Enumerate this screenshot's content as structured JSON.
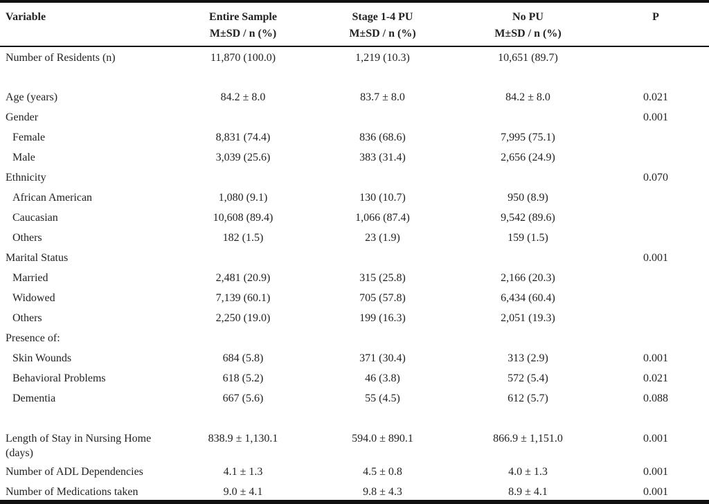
{
  "colors": {
    "background": "#ffffff",
    "text": "#222222",
    "rule": "#101010"
  },
  "table": {
    "columns": [
      {
        "label": "Variable",
        "sublabel": ""
      },
      {
        "label": "Entire Sample",
        "sublabel": "M±SD / n (%)"
      },
      {
        "label": "Stage 1-4 PU",
        "sublabel": "M±SD / n (%)"
      },
      {
        "label": "No PU",
        "sublabel": "M±SD / n (%)"
      },
      {
        "label": "P",
        "sublabel": ""
      }
    ],
    "rows": [
      {
        "indent": false,
        "spacer_after": true,
        "cells": [
          "Number of Residents (n)",
          "11,870 (100.0)",
          "1,219 (10.3)",
          "10,651 (89.7)",
          ""
        ]
      },
      {
        "indent": false,
        "spacer_after": false,
        "cells": [
          "Age (years)",
          "84.2 ± 8.0",
          "83.7 ± 8.0",
          "84.2 ± 8.0",
          "0.021"
        ]
      },
      {
        "indent": false,
        "spacer_after": false,
        "cells": [
          "Gender",
          "",
          "",
          "",
          "0.001"
        ]
      },
      {
        "indent": true,
        "spacer_after": false,
        "cells": [
          "Female",
          "8,831 (74.4)",
          "836 (68.6)",
          "7,995 (75.1)",
          ""
        ]
      },
      {
        "indent": true,
        "spacer_after": false,
        "cells": [
          "Male",
          "3,039 (25.6)",
          "383 (31.4)",
          "2,656 (24.9)",
          ""
        ]
      },
      {
        "indent": false,
        "spacer_after": false,
        "cells": [
          "Ethnicity",
          "",
          "",
          "",
          "0.070"
        ]
      },
      {
        "indent": true,
        "spacer_after": false,
        "cells": [
          "African American",
          "1,080 (9.1)",
          "130 (10.7)",
          "950 (8.9)",
          ""
        ]
      },
      {
        "indent": true,
        "spacer_after": false,
        "cells": [
          "Caucasian",
          "10,608 (89.4)",
          "1,066 (87.4)",
          "9,542 (89.6)",
          ""
        ]
      },
      {
        "indent": true,
        "spacer_after": false,
        "cells": [
          "Others",
          "182 (1.5)",
          "23 (1.9)",
          "159 (1.5)",
          ""
        ]
      },
      {
        "indent": false,
        "spacer_after": false,
        "cells": [
          "Marital Status",
          "",
          "",
          "",
          "0.001"
        ]
      },
      {
        "indent": true,
        "spacer_after": false,
        "cells": [
          "Married",
          "2,481 (20.9)",
          "315 (25.8)",
          "2,166 (20.3)",
          ""
        ]
      },
      {
        "indent": true,
        "spacer_after": false,
        "cells": [
          "Widowed",
          "7,139 (60.1)",
          "705 (57.8)",
          "6,434 (60.4)",
          ""
        ]
      },
      {
        "indent": true,
        "spacer_after": false,
        "cells": [
          "Others",
          "2,250 (19.0)",
          "199 (16.3)",
          "2,051 (19.3)",
          ""
        ]
      },
      {
        "indent": false,
        "spacer_after": false,
        "cells": [
          "Presence of:",
          "",
          "",
          "",
          ""
        ]
      },
      {
        "indent": true,
        "spacer_after": false,
        "cells": [
          "Skin Wounds",
          "684 (5.8)",
          "371 (30.4)",
          "313 (2.9)",
          "0.001"
        ]
      },
      {
        "indent": true,
        "spacer_after": false,
        "cells": [
          "Behavioral Problems",
          "618 (5.2)",
          "46 (3.8)",
          "572 (5.4)",
          "0.021"
        ]
      },
      {
        "indent": true,
        "spacer_after": true,
        "cells": [
          "Dementia",
          "667 (5.6)",
          "55 (4.5)",
          "612 (5.7)",
          "0.088"
        ]
      },
      {
        "indent": false,
        "spacer_after": false,
        "cells": [
          "Length of Stay in Nursing Home (days)",
          "838.9 ± 1,130.1",
          "594.0 ± 890.1",
          "866.9 ± 1,151.0",
          "0.001"
        ]
      },
      {
        "indent": false,
        "spacer_after": false,
        "cells": [
          "Number of ADL Dependencies",
          "4.1 ± 1.3",
          "4.5 ± 0.8",
          "4.0 ± 1.3",
          "0.001"
        ]
      },
      {
        "indent": false,
        "spacer_after": false,
        "cells": [
          "Number of Medications taken",
          "9.0 ± 4.1",
          "9.8 ± 4.3",
          "8.9 ± 4.1",
          "0.001"
        ]
      }
    ]
  }
}
